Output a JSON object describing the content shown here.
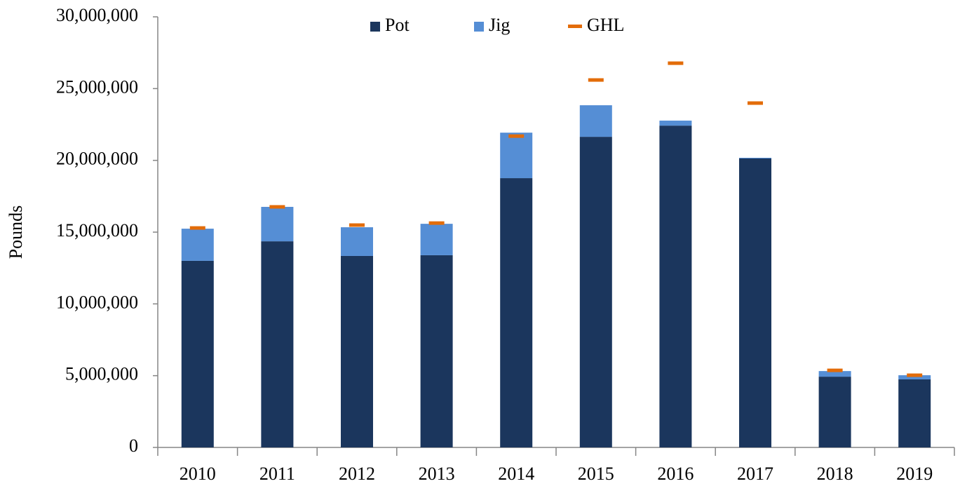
{
  "chart_data": {
    "type": "bar",
    "stacked": true,
    "y_label": "Pounds",
    "categories": [
      "2010",
      "2011",
      "2012",
      "2013",
      "2014",
      "2015",
      "2016",
      "2017",
      "2018",
      "2019"
    ],
    "series": [
      {
        "name": "Pot",
        "color": "#1b365d",
        "values": [
          13000000,
          14360000,
          13340000,
          13390000,
          18760000,
          21640000,
          22420000,
          20130000,
          4930000,
          4740000
        ]
      },
      {
        "name": "Jig",
        "color": "#558ed5",
        "values": [
          2240000,
          2400000,
          2000000,
          2190000,
          3170000,
          2200000,
          350000,
          50000,
          390000,
          290000
        ]
      },
      {
        "name": "GHL",
        "color": "#e36c09",
        "type": "marker",
        "values": [
          15290000,
          16760000,
          15490000,
          15630000,
          21690000,
          25600000,
          26770000,
          23990000,
          5370000,
          5030000
        ]
      }
    ],
    "ylim": [
      0,
      30000000
    ],
    "yticks": [
      0,
      {
        "value": 5000000,
        "label": "5,000,000"
      },
      {
        "value": 10000000,
        "label": "10,000,000"
      },
      {
        "value": 15000000,
        "label": "15,000,000"
      },
      {
        "value": 20000000,
        "label": "20,000,000"
      },
      {
        "value": 25000000,
        "label": "25,000,000"
      },
      {
        "value": 30000000,
        "label": "30,000,000"
      }
    ],
    "legend": "top"
  }
}
